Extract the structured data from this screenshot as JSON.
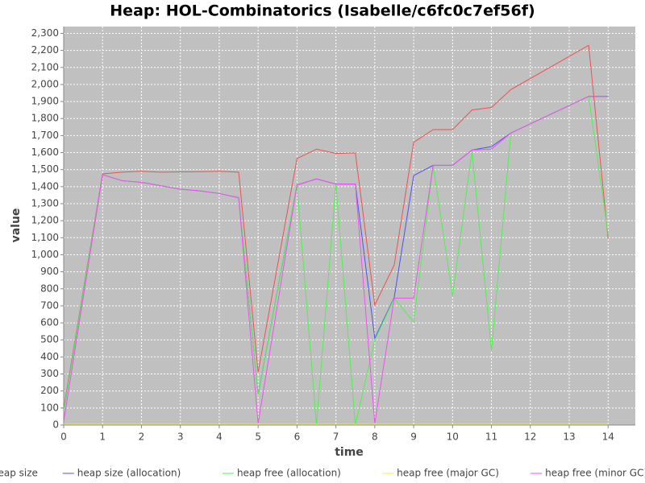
{
  "chart_data": {
    "type": "line",
    "title": "Heap: HOL-Combinatorics (Isabelle/c6fc0c7ef56f)",
    "x_label": "time",
    "y_label": "value",
    "x": [
      0,
      1,
      1.5,
      2,
      2.5,
      3,
      3.5,
      4,
      4.5,
      5,
      6,
      6.5,
      7,
      7.5,
      8,
      8.5,
      9,
      9.5,
      10,
      10.5,
      11,
      11.5,
      13.5,
      14
    ],
    "series": [
      {
        "name": "heap size",
        "color": "#f05050",
        "values": [
          95,
          1475,
          1485,
          1490,
          1485,
          1487,
          1488,
          1490,
          1485,
          310,
          1565,
          1620,
          1595,
          1598,
          705,
          940,
          1660,
          1735,
          1735,
          1850,
          1865,
          1970,
          2230,
          1095
        ]
      },
      {
        "name": "heap size (allocation)",
        "color": "#5050f0",
        "values": [
          80,
          1470,
          1435,
          1425,
          1405,
          1385,
          1375,
          1360,
          1335,
          180,
          1410,
          1445,
          1415,
          1415,
          510,
          750,
          1465,
          1525,
          1525,
          1615,
          1635,
          1715,
          1930,
          1930
        ]
      },
      {
        "name": "heap free (allocation)",
        "color": "#50f050",
        "values": [
          80,
          1470,
          1435,
          1425,
          1405,
          1385,
          1375,
          1360,
          1335,
          180,
          1410,
          0,
          1415,
          0,
          500,
          745,
          605,
          1525,
          760,
          1610,
          440,
          1715,
          1930,
          1120
        ]
      },
      {
        "name": "heap free (major GC)",
        "color": "#f0f050",
        "values": [
          5,
          5,
          5,
          5,
          5,
          5,
          5,
          5,
          5,
          5,
          5,
          5,
          5,
          5,
          5,
          5,
          5,
          5,
          5,
          5,
          5,
          5,
          5,
          5
        ]
      },
      {
        "name": "heap free (minor GC)",
        "color": "#f050f0",
        "values": [
          20,
          1470,
          1435,
          1425,
          1405,
          1385,
          1375,
          1360,
          1335,
          10,
          1410,
          1445,
          1415,
          1415,
          10,
          745,
          745,
          1525,
          1525,
          1615,
          1620,
          1715,
          1930,
          1930
        ]
      }
    ],
    "xlim": [
      0,
      14.7
    ],
    "ylim": [
      0,
      2340
    ],
    "xticks": [
      0,
      1,
      2,
      3,
      4,
      5,
      6,
      7,
      8,
      9,
      10,
      11,
      12,
      13,
      14
    ],
    "yticks": [
      0,
      100,
      200,
      300,
      400,
      500,
      600,
      700,
      800,
      900,
      {
        "value": 1000,
        "label": "1,000"
      },
      {
        "value": 1100,
        "label": "1,100"
      },
      {
        "value": 1200,
        "label": "1,200"
      },
      {
        "value": 1300,
        "label": "1,300"
      },
      {
        "value": 1400,
        "label": "1,400"
      },
      {
        "value": 1500,
        "label": "1,500"
      },
      {
        "value": 1600,
        "label": "1,600"
      },
      {
        "value": 1700,
        "label": "1,700"
      },
      {
        "value": 1800,
        "label": "1,800"
      },
      {
        "value": 1900,
        "label": "1,900"
      },
      {
        "value": 2000,
        "label": "2,000"
      },
      {
        "value": 2100,
        "label": "2,100"
      },
      {
        "value": 2200,
        "label": "2,200"
      },
      {
        "value": 2300,
        "label": "2,300"
      }
    ],
    "grid": true,
    "legend": "bottom"
  }
}
